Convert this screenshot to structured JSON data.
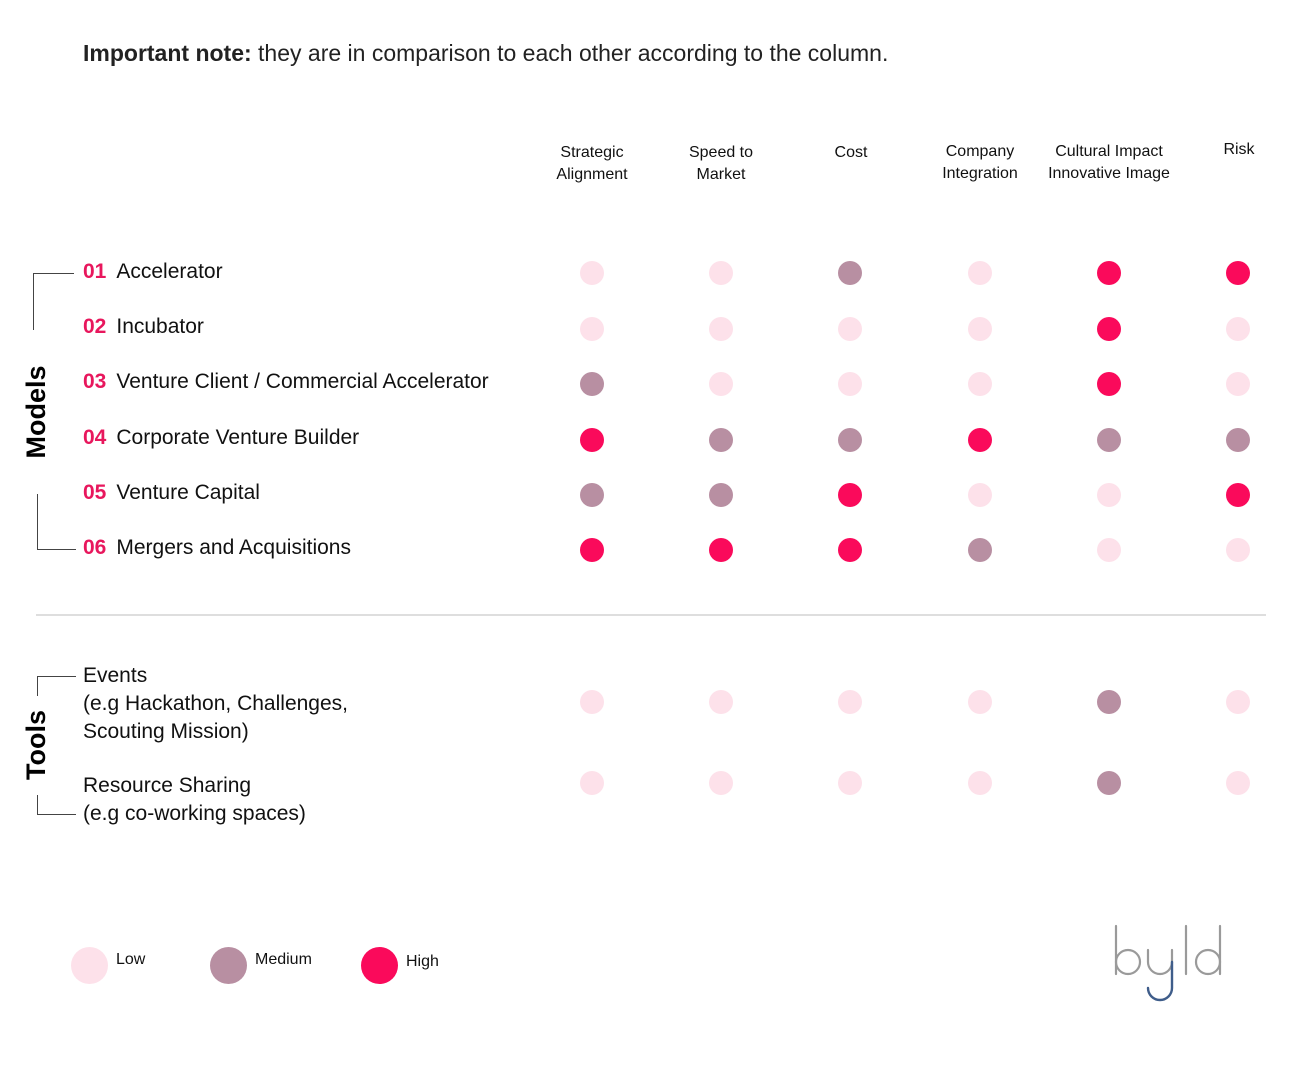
{
  "note": {
    "bold": "Important note:",
    "text": " they are in comparison to each other according to the column."
  },
  "colors": {
    "Low": "#fde1ea",
    "Medium": "#b88fa2",
    "High": "#fa0a5b",
    "accent": "#e8175d",
    "logo_gray": "#9a9a9a",
    "logo_blue": "#3f5d8a"
  },
  "chart_data": {
    "type": "table",
    "columns": [
      {
        "lines": [
          "Strategic",
          "Alignment"
        ]
      },
      {
        "lines": [
          "Speed to",
          "Market"
        ]
      },
      {
        "lines": [
          "Cost"
        ]
      },
      {
        "lines": [
          "Company",
          "Integration"
        ]
      },
      {
        "lines": [
          "Cultural Impact",
          "Innovative Image"
        ]
      },
      {
        "lines": [
          "Risk"
        ]
      }
    ],
    "groups": [
      {
        "name": "Models",
        "rows": [
          {
            "num": "01",
            "label": "Accelerator",
            "values": [
              "Low",
              "Low",
              "Medium",
              "Low",
              "High",
              "High"
            ]
          },
          {
            "num": "02",
            "label": "Incubator",
            "values": [
              "Low",
              "Low",
              "Low",
              "Low",
              "High",
              "Low"
            ]
          },
          {
            "num": "03",
            "label": "Venture Client / Commercial Accelerator",
            "values": [
              "Medium",
              "Low",
              "Low",
              "Low",
              "High",
              "Low"
            ]
          },
          {
            "num": "04",
            "label": "Corporate Venture Builder",
            "values": [
              "High",
              "Medium",
              "Medium",
              "High",
              "Medium",
              "Medium"
            ]
          },
          {
            "num": "05",
            "label": "Venture Capital",
            "values": [
              "Medium",
              "Medium",
              "High",
              "Low",
              "Low",
              "High"
            ]
          },
          {
            "num": "06",
            "label": "Mergers and Acquisitions",
            "values": [
              "High",
              "High",
              "High",
              "Medium",
              "Low",
              "Low"
            ]
          }
        ]
      },
      {
        "name": "Tools",
        "rows": [
          {
            "lines": [
              "Events",
              "(e.g Hackathon, Challenges,",
              "Scouting Mission)"
            ],
            "values": [
              "Low",
              "Low",
              "Low",
              "Low",
              "Medium",
              "Low"
            ]
          },
          {
            "lines": [
              "Resource Sharing",
              "(e.g co-working spaces)"
            ],
            "values": [
              "Low",
              "Low",
              "Low",
              "Low",
              "Medium",
              "Low"
            ]
          }
        ]
      }
    ],
    "legend": [
      "Low",
      "Medium",
      "High"
    ]
  },
  "logo": {
    "text": "byld"
  }
}
